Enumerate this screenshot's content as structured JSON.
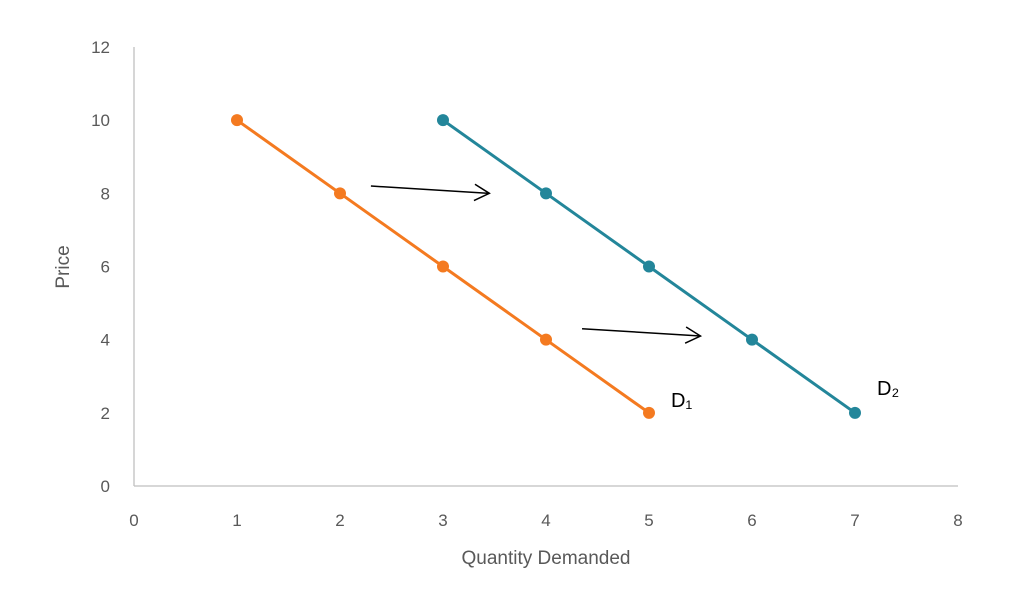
{
  "chart_data": {
    "type": "line",
    "xlabel": "Quantity Demanded",
    "ylabel": "Price",
    "xlim": [
      0,
      8
    ],
    "ylim": [
      0,
      12
    ],
    "x_ticks": [
      "0",
      "1",
      "2",
      "3",
      "4",
      "5",
      "6",
      "7",
      "8"
    ],
    "y_ticks": [
      "0",
      "2",
      "4",
      "6",
      "8",
      "10",
      "12"
    ],
    "grid": false,
    "legend": "none",
    "series": [
      {
        "label": "D₁",
        "color": "#F47A20",
        "points": [
          {
            "x": 1,
            "y": 10
          },
          {
            "x": 2,
            "y": 8
          },
          {
            "x": 3,
            "y": 6
          },
          {
            "x": 4,
            "y": 4
          },
          {
            "x": 5,
            "y": 2
          }
        ]
      },
      {
        "label": "D₂",
        "color": "#23869A",
        "points": [
          {
            "x": 3,
            "y": 10
          },
          {
            "x": 4,
            "y": 8
          },
          {
            "x": 5,
            "y": 6
          },
          {
            "x": 6,
            "y": 4
          },
          {
            "x": 7,
            "y": 2
          }
        ]
      }
    ],
    "annotations": [
      {
        "type": "arrow",
        "from": [
          2.3,
          8.2
        ],
        "to": [
          3.45,
          8.0
        ]
      },
      {
        "type": "arrow",
        "from": [
          4.35,
          4.3
        ],
        "to": [
          5.5,
          4.1
        ]
      }
    ],
    "axis_color": "#BFBFBF",
    "arrow_color": "#000000"
  }
}
